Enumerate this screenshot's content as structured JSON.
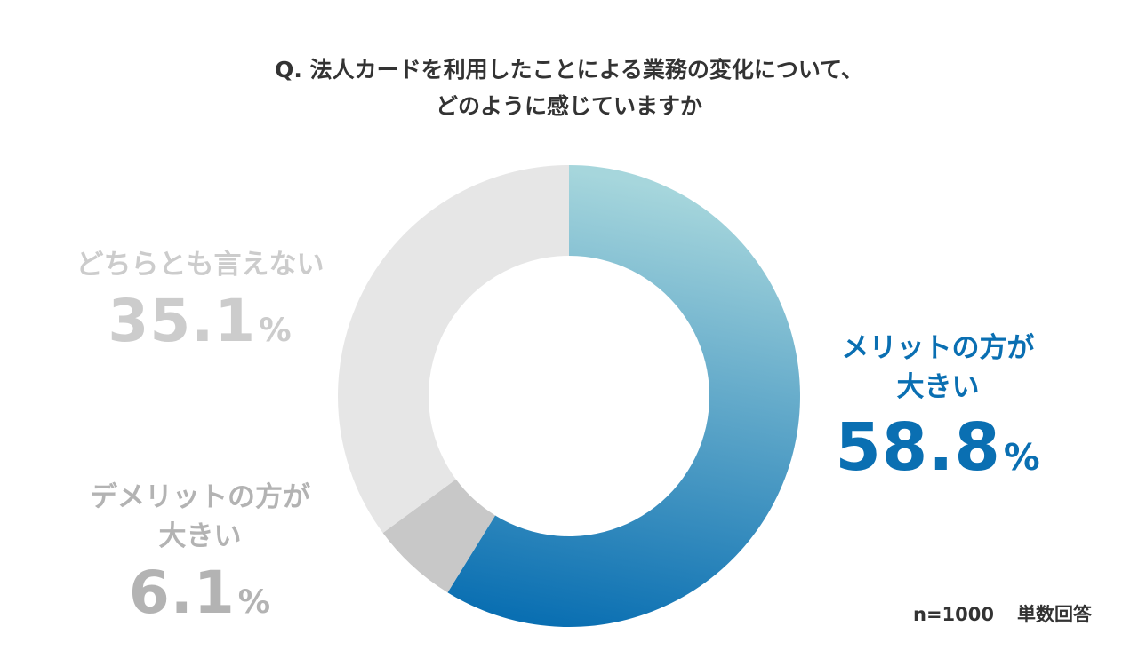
{
  "chart_data": {
    "type": "pie",
    "title_lines": [
      "Q. 法人カードを利用したことによる業務の変化について、",
      "どのように感じていますか"
    ],
    "series": [
      {
        "label_lines": [
          "メリットの方が",
          "大きい"
        ],
        "value": 58.8,
        "color": "#0a6fb2",
        "color_start": "#a6d6dc"
      },
      {
        "label_lines": [
          "デメリットの方が",
          "大きい"
        ],
        "value": 6.1,
        "color": "#c8c8c8"
      },
      {
        "label_lines": [
          "どちらとも言えない"
        ],
        "value": 35.1,
        "color": "#e6e6e6"
      }
    ],
    "value_display": [
      "58.8",
      "6.1",
      "35.1"
    ],
    "unit": "%",
    "note": {
      "n": "n=1000",
      "type": "単数回答"
    }
  }
}
